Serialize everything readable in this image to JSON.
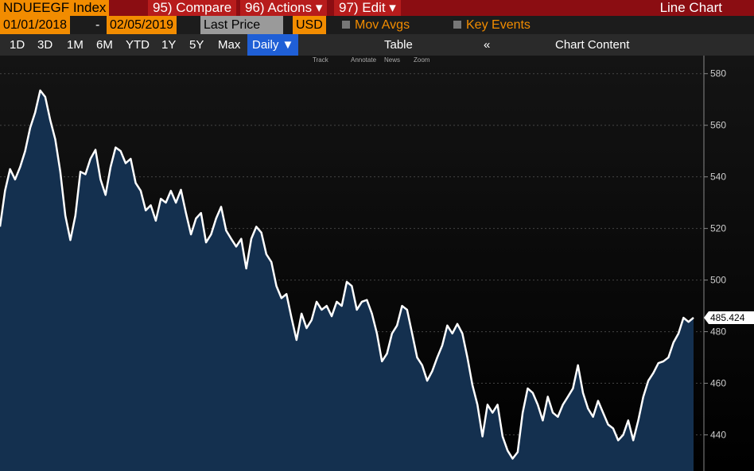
{
  "header": {
    "security": "NDUEEGF Index",
    "menus": [
      "95) Compare",
      "96) Actions ▾",
      "97) Edit ▾"
    ],
    "view": "Line Chart"
  },
  "controls": {
    "start_date": "01/01/2018",
    "separator": "-",
    "end_date": "02/05/2019",
    "field": "Last Price",
    "currency": "USD",
    "mov_avgs": "Mov Avgs",
    "key_events": "Key Events"
  },
  "periods": [
    "1D",
    "3D",
    "1M",
    "6M",
    "YTD",
    "1Y",
    "5Y",
    "Max"
  ],
  "frequency": "Daily ▼",
  "table": "Table",
  "collapse": "«",
  "chart_content": "Chart Content",
  "tools": [
    "Track",
    "Annotate",
    "News",
    "Zoom"
  ],
  "chart_data": {
    "type": "area",
    "ylim": [
      426,
      587
    ],
    "yticks": [
      440,
      460,
      480,
      500,
      520,
      540,
      560,
      580
    ],
    "grid": true,
    "series": [
      {
        "name": "NDUEEGF Index",
        "color": "#ffffff",
        "fill": "#14304f",
        "values": [
          520.7,
          534.6,
          543,
          539,
          543.8,
          550,
          559,
          565,
          573.5,
          571,
          562,
          554.5,
          542,
          525,
          515.5,
          525,
          542,
          541,
          547,
          550.5,
          539,
          533,
          543.8,
          551.4,
          550,
          545.3,
          547,
          537.6,
          534.6,
          527,
          529,
          523,
          531.5,
          530,
          534.6,
          530,
          535,
          526,
          517.7,
          523.9,
          526,
          514.6,
          517.7,
          523.9,
          528.4,
          519.2,
          516,
          513,
          516,
          504.5,
          516,
          520.7,
          518.4,
          510,
          507,
          497.7,
          493,
          494.6,
          485.4,
          476.8,
          487,
          481.4,
          484.5,
          491.6,
          488.5,
          490,
          486,
          491.6,
          490,
          499.3,
          497.7,
          488.5,
          491.6,
          492.3,
          487,
          479.3,
          468.5,
          471.5,
          479.3,
          482.4,
          490,
          488.5,
          479.3,
          470,
          467,
          461,
          464.7,
          470,
          474.7,
          482.4,
          479.3,
          483,
          479.3,
          470,
          459.3,
          451.7,
          439.4,
          451.7,
          448.6,
          451.7,
          439.4,
          433.9,
          430.8,
          433.3,
          448.6,
          458,
          456.3,
          451.7,
          445.6,
          454.8,
          448.6,
          447,
          451.7,
          454.8,
          458,
          467,
          456.3,
          450.2,
          447,
          453.2,
          448.6,
          444,
          442.5,
          437.9,
          440,
          445.6,
          437.9,
          445.6,
          454.8,
          461,
          464,
          467.8,
          468.5,
          470,
          475.8,
          479.3,
          485.4,
          483.8,
          485.424
        ]
      }
    ]
  }
}
